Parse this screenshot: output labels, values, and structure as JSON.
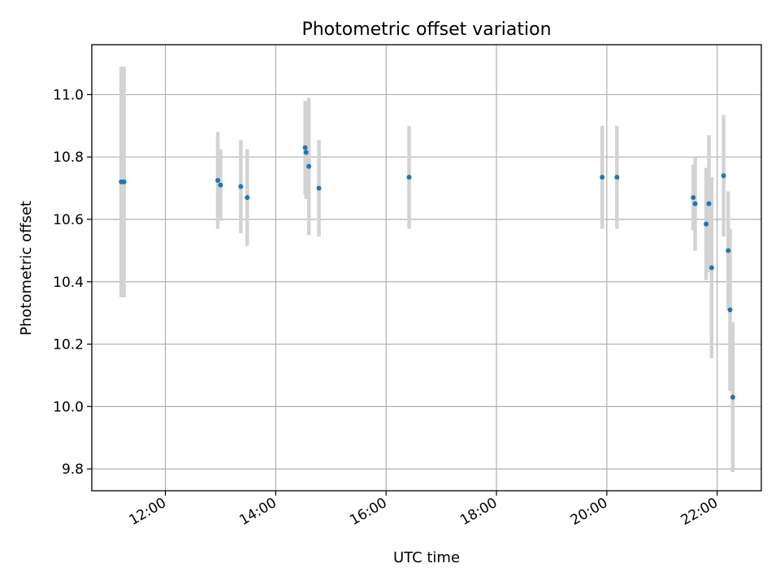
{
  "chart_data": {
    "type": "scatter",
    "title": "Photometric offset variation",
    "xlabel": "UTC time",
    "ylabel": "Photometric offset",
    "xlim": [
      "10:40",
      "22:48"
    ],
    "ylim": [
      9.73,
      11.16
    ],
    "x_ticks": [
      "12:00",
      "14:00",
      "16:00",
      "18:00",
      "20:00",
      "22:00"
    ],
    "y_ticks": [
      9.8,
      10.0,
      10.2,
      10.4,
      10.6,
      10.8,
      11.0
    ],
    "grid": true,
    "marker_color": "#1f77b4",
    "errorbar_color": "#d3d3d3",
    "points": [
      {
        "time": "11:12",
        "y": 10.72,
        "err": 0.37
      },
      {
        "time": "11:15",
        "y": 10.72,
        "err": 0.37
      },
      {
        "time": "12:57",
        "y": 10.725,
        "err": 0.155
      },
      {
        "time": "13:00",
        "y": 10.71,
        "err": 0.115
      },
      {
        "time": "13:22",
        "y": 10.705,
        "err": 0.15
      },
      {
        "time": "13:29",
        "y": 10.67,
        "err": 0.155
      },
      {
        "time": "14:32",
        "y": 10.83,
        "err": 0.15
      },
      {
        "time": "14:33",
        "y": 10.815,
        "err": 0.15
      },
      {
        "time": "14:36",
        "y": 10.77,
        "err": 0.22
      },
      {
        "time": "14:47",
        "y": 10.7,
        "err": 0.155
      },
      {
        "time": "16:25",
        "y": 10.735,
        "err": 0.165
      },
      {
        "time": "19:55",
        "y": 10.735,
        "err": 0.165
      },
      {
        "time": "20:11",
        "y": 10.735,
        "err": 0.165
      },
      {
        "time": "21:34",
        "y": 10.67,
        "err": 0.105
      },
      {
        "time": "21:36",
        "y": 10.65,
        "err": 0.15
      },
      {
        "time": "21:48",
        "y": 10.585,
        "err": 0.18
      },
      {
        "time": "21:51",
        "y": 10.65,
        "err": 0.22
      },
      {
        "time": "21:54",
        "y": 10.445,
        "err": 0.29
      },
      {
        "time": "22:07",
        "y": 10.74,
        "err": 0.195
      },
      {
        "time": "22:12",
        "y": 10.5,
        "err": 0.19
      },
      {
        "time": "22:14",
        "y": 10.31,
        "err": 0.26
      },
      {
        "time": "22:17",
        "y": 10.03,
        "err": 0.24
      }
    ]
  }
}
